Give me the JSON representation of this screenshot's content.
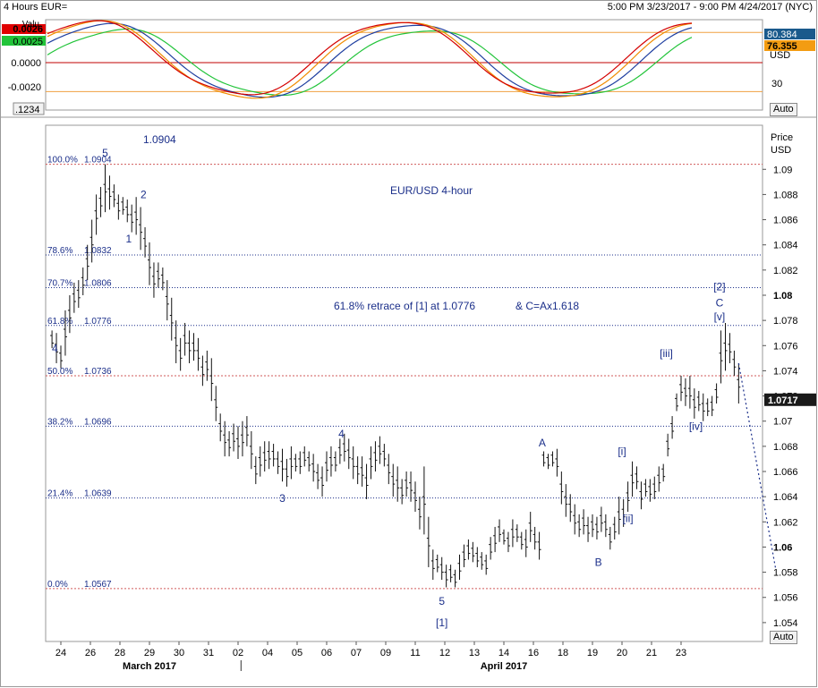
{
  "header": {
    "title": "4 Hours EUR=",
    "range": "5:00 PM 3/23/2017 - 9:00 PM 4/24/2017 (NYC)"
  },
  "indicator": {
    "left_badge_top": "0.0026",
    "left_badge_bottom": "0.0025",
    "left_ticks": [
      {
        "v": 0.0,
        "t": "0.0000"
      },
      {
        "v": -0.002,
        "t": "-0.0020"
      }
    ],
    "left_value_top_label": "Valu",
    "right_badge_top": "80.384",
    "right_badge_bottom": "76.355",
    "right_unit": "USD",
    "right_tick": "30",
    "corner_label": ".1234",
    "auto_label": "Auto",
    "colors": {
      "red": "#d40000",
      "orange": "#f08c00",
      "blue": "#1f3fa0",
      "green": "#22c43a",
      "badge_top_red": "#e00000",
      "badge_bottom_green": "#22c43a",
      "badge_right_blue": "#1a5a8c",
      "badge_right_orange": "#f39c12"
    }
  },
  "main": {
    "price_header": "Price",
    "price_unit": "USD",
    "auto_label": "Auto",
    "current_price_label": "1.0717",
    "chart_title_text": "EUR/USD 4-hour",
    "annotation_text": "61.8% retrace of [1] at 1.0776",
    "annotation_text_2": "& C=Ax1.618",
    "top_value_label": "1.0904"
  },
  "chart_data": {
    "type": "candlestick",
    "title": "EUR/USD 4-hour",
    "x_axis": {
      "ticks": [
        "24",
        "26",
        "28",
        "29",
        "30",
        "31",
        "02",
        "04",
        "05",
        "06",
        "07",
        "09",
        "11",
        "12",
        "13",
        "14",
        "16",
        "18",
        "19",
        "20",
        "21",
        "23"
      ],
      "months": [
        "March 2017",
        "April 2017"
      ]
    },
    "y_axis": {
      "unit": "USD",
      "ylim": [
        1.0525,
        1.0935
      ],
      "ticks": [
        "1.09",
        "1.088",
        "1.086",
        "1.084",
        "1.082",
        "1.08",
        "1.078",
        "1.076",
        "1.074",
        "1.072",
        "1.07",
        "1.068",
        "1.066",
        "1.064",
        "1.062",
        "1.06",
        "1.058",
        "1.056",
        "1.054"
      ]
    },
    "fib_levels": [
      {
        "pct": "100.0%",
        "value": "1.0904"
      },
      {
        "pct": "78.6%",
        "value": "1.0832"
      },
      {
        "pct": "70.7%",
        "value": "1.0806"
      },
      {
        "pct": "61.8%",
        "value": "1.0776"
      },
      {
        "pct": "50.0%",
        "value": "1.0736"
      },
      {
        "pct": "38.2%",
        "value": "1.0696"
      },
      {
        "pct": "21.4%",
        "value": "1.0639"
      },
      {
        "pct": "0.0%",
        "value": "1.0567"
      }
    ],
    "wave_labels": [
      {
        "t": "5",
        "x": 1.5,
        "y": 1.091
      },
      {
        "t": "2",
        "x": 2.8,
        "y": 1.0877
      },
      {
        "t": "1",
        "x": 2.3,
        "y": 1.0842
      },
      {
        "t": "4",
        "x": -0.2,
        "y": 1.0755
      },
      {
        "t": "3",
        "x": 7.5,
        "y": 1.0636
      },
      {
        "t": "4",
        "x": 9.5,
        "y": 1.0687
      },
      {
        "t": "5",
        "x": 12.9,
        "y": 1.0554
      },
      {
        "t": "[1]",
        "x": 12.9,
        "y": 1.0537
      },
      {
        "t": "A",
        "x": 16.3,
        "y": 1.068
      },
      {
        "t": "B",
        "x": 18.2,
        "y": 1.0585
      },
      {
        "t": "[i]",
        "x": 19.0,
        "y": 1.0673
      },
      {
        "t": "[ii]",
        "x": 19.2,
        "y": 1.062
      },
      {
        "t": "[iii]",
        "x": 20.5,
        "y": 1.0751
      },
      {
        "t": "[iv]",
        "x": 21.5,
        "y": 1.0693
      },
      {
        "t": "[v]",
        "x": 22.3,
        "y": 1.078
      },
      {
        "t": "C",
        "x": 22.3,
        "y": 1.0791
      },
      {
        "t": "[2]",
        "x": 22.3,
        "y": 1.0804
      }
    ],
    "bars": [
      [
        -0.3,
        1.0758,
        1.0772
      ],
      [
        -0.15,
        1.0746,
        1.077
      ],
      [
        0,
        1.0742,
        1.076
      ],
      [
        0.15,
        1.0752,
        1.0788
      ],
      [
        0.3,
        1.077,
        1.08
      ],
      [
        0.45,
        1.0786,
        1.081
      ],
      [
        0.6,
        1.079,
        1.0812
      ],
      [
        0.75,
        1.08,
        1.0822
      ],
      [
        0.9,
        1.0812,
        1.084
      ],
      [
        1.05,
        1.0826,
        1.086
      ],
      [
        1.2,
        1.0848,
        1.088
      ],
      [
        1.35,
        1.0862,
        1.0886
      ],
      [
        1.5,
        1.0866,
        1.0904
      ],
      [
        1.65,
        1.0868,
        1.0895
      ],
      [
        1.8,
        1.087,
        1.0888
      ],
      [
        1.95,
        1.086,
        1.088
      ],
      [
        2.1,
        1.0864,
        1.0878
      ],
      [
        2.25,
        1.0858,
        1.0876
      ],
      [
        2.4,
        1.085,
        1.0872
      ],
      [
        2.55,
        1.0848,
        1.0878
      ],
      [
        2.7,
        1.0836,
        1.087
      ],
      [
        2.85,
        1.083,
        1.0854
      ],
      [
        3.0,
        1.0808,
        1.0842
      ],
      [
        3.15,
        1.0798,
        1.0826
      ],
      [
        3.3,
        1.0806,
        1.0826
      ],
      [
        3.45,
        1.0804,
        1.0822
      ],
      [
        3.6,
        1.078,
        1.0812
      ],
      [
        3.75,
        1.0764,
        1.0798
      ],
      [
        3.9,
        1.0746,
        1.078
      ],
      [
        4.05,
        1.074,
        1.0766
      ],
      [
        4.2,
        1.0752,
        1.0778
      ],
      [
        4.35,
        1.0746,
        1.0772
      ],
      [
        4.5,
        1.0748,
        1.077
      ],
      [
        4.65,
        1.074,
        1.0766
      ],
      [
        4.8,
        1.0728,
        1.0752
      ],
      [
        4.95,
        1.0732,
        1.0756
      ],
      [
        5.1,
        1.0716,
        1.075
      ],
      [
        5.25,
        1.07,
        1.0728
      ],
      [
        5.4,
        1.0684,
        1.0706
      ],
      [
        5.55,
        1.0672,
        1.07
      ],
      [
        5.7,
        1.0672,
        1.0692
      ],
      [
        5.85,
        1.0676,
        1.0698
      ],
      [
        6.0,
        1.067,
        1.0696
      ],
      [
        6.15,
        1.0672,
        1.07
      ],
      [
        6.3,
        1.068,
        1.0704
      ],
      [
        6.45,
        1.0662,
        1.0692
      ],
      [
        6.6,
        1.065,
        1.0672
      ],
      [
        6.75,
        1.0656,
        1.068
      ],
      [
        6.9,
        1.066,
        1.0684
      ],
      [
        7.05,
        1.0662,
        1.0684
      ],
      [
        7.2,
        1.0664,
        1.0682
      ],
      [
        7.35,
        1.0658,
        1.0676
      ],
      [
        7.5,
        1.0652,
        1.0678
      ],
      [
        7.65,
        1.0648,
        1.067
      ],
      [
        7.8,
        1.0654,
        1.068
      ],
      [
        7.95,
        1.066,
        1.0674
      ],
      [
        8.1,
        1.0658,
        1.0676
      ],
      [
        8.25,
        1.0664,
        1.068
      ],
      [
        8.4,
        1.066,
        1.0676
      ],
      [
        8.55,
        1.0652,
        1.0674
      ],
      [
        8.7,
        1.0646,
        1.0666
      ],
      [
        8.85,
        1.064,
        1.0664
      ],
      [
        9.0,
        1.0652,
        1.0676
      ],
      [
        9.15,
        1.0656,
        1.068
      ],
      [
        9.3,
        1.066,
        1.0676
      ],
      [
        9.45,
        1.0666,
        1.0686
      ],
      [
        9.6,
        1.0668,
        1.069
      ],
      [
        9.75,
        1.0662,
        1.0686
      ],
      [
        9.9,
        1.0654,
        1.068
      ],
      [
        10.05,
        1.065,
        1.0672
      ],
      [
        10.2,
        1.0648,
        1.0672
      ],
      [
        10.35,
        1.0638,
        1.0666
      ],
      [
        10.5,
        1.0654,
        1.068
      ],
      [
        10.65,
        1.066,
        1.0684
      ],
      [
        10.8,
        1.0666,
        1.0688
      ],
      [
        10.95,
        1.0664,
        1.0682
      ],
      [
        11.1,
        1.065,
        1.0674
      ],
      [
        11.25,
        1.064,
        1.0666
      ],
      [
        11.4,
        1.0636,
        1.0664
      ],
      [
        11.55,
        1.0634,
        1.0654
      ],
      [
        11.7,
        1.064,
        1.066
      ],
      [
        11.85,
        1.0636,
        1.066
      ],
      [
        12.0,
        1.0628,
        1.0652
      ],
      [
        12.15,
        1.0614,
        1.064
      ],
      [
        12.3,
        1.061,
        1.0664
      ],
      [
        12.45,
        1.0584,
        1.0624
      ],
      [
        12.6,
        1.0574,
        1.0598
      ],
      [
        12.75,
        1.058,
        1.0594
      ],
      [
        12.9,
        1.0574,
        1.0592
      ],
      [
        13.05,
        1.0568,
        1.0586
      ],
      [
        13.2,
        1.0572,
        1.0586
      ],
      [
        13.35,
        1.0568,
        1.0582
      ],
      [
        13.5,
        1.0574,
        1.0594
      ],
      [
        13.65,
        1.0584,
        1.0602
      ],
      [
        13.8,
        1.059,
        1.0606
      ],
      [
        13.95,
        1.0588,
        1.0604
      ],
      [
        14.1,
        1.0584,
        1.06
      ],
      [
        14.25,
        1.0582,
        1.0596
      ],
      [
        14.4,
        1.0578,
        1.0594
      ],
      [
        14.55,
        1.059,
        1.0608
      ],
      [
        14.7,
        1.0596,
        1.0616
      ],
      [
        14.85,
        1.0604,
        1.0622
      ],
      [
        15.0,
        1.0602,
        1.0614
      ],
      [
        15.15,
        1.0596,
        1.0612
      ],
      [
        15.3,
        1.06,
        1.0622
      ],
      [
        15.45,
        1.0604,
        1.0618
      ],
      [
        15.6,
        1.0598,
        1.0612
      ],
      [
        15.75,
        1.0592,
        1.0614
      ],
      [
        15.9,
        1.0604,
        1.0628
      ],
      [
        16.05,
        1.0598,
        1.0616
      ],
      [
        16.2,
        1.059,
        1.0612
      ],
      [
        16.35,
        1.0664,
        1.0676
      ],
      [
        16.5,
        1.0662,
        1.0674
      ],
      [
        16.65,
        1.0664,
        1.0676
      ],
      [
        16.8,
        1.0656,
        1.0678
      ],
      [
        16.95,
        1.0634,
        1.066
      ],
      [
        17.1,
        1.0624,
        1.065
      ],
      [
        17.25,
        1.062,
        1.0642
      ],
      [
        17.4,
        1.061,
        1.0634
      ],
      [
        17.55,
        1.0608,
        1.0626
      ],
      [
        17.7,
        1.061,
        1.063
      ],
      [
        17.85,
        1.0604,
        1.0624
      ],
      [
        18.0,
        1.0608,
        1.0626
      ],
      [
        18.15,
        1.0606,
        1.0624
      ],
      [
        18.3,
        1.0612,
        1.0632
      ],
      [
        18.45,
        1.0608,
        1.0626
      ],
      [
        18.6,
        1.0598,
        1.0616
      ],
      [
        18.75,
        1.0606,
        1.0624
      ],
      [
        18.9,
        1.061,
        1.064
      ],
      [
        19.05,
        1.0616,
        1.0638
      ],
      [
        19.2,
        1.0628,
        1.0652
      ],
      [
        19.35,
        1.064,
        1.0668
      ],
      [
        19.5,
        1.0646,
        1.0664
      ],
      [
        19.65,
        1.063,
        1.0652
      ],
      [
        19.8,
        1.064,
        1.0654
      ],
      [
        19.95,
        1.0636,
        1.0654
      ],
      [
        20.1,
        1.0638,
        1.0656
      ],
      [
        20.25,
        1.0644,
        1.0664
      ],
      [
        20.4,
        1.0652,
        1.0666
      ],
      [
        20.55,
        1.0672,
        1.069
      ],
      [
        20.7,
        1.0686,
        1.0704
      ],
      [
        20.85,
        1.0708,
        1.0722
      ],
      [
        21.0,
        1.0716,
        1.0736
      ],
      [
        21.15,
        1.0712,
        1.0734
      ],
      [
        21.3,
        1.071,
        1.0736
      ],
      [
        21.45,
        1.0702,
        1.0726
      ],
      [
        21.6,
        1.0708,
        1.0724
      ],
      [
        21.75,
        1.07,
        1.0722
      ],
      [
        21.9,
        1.0704,
        1.0718
      ],
      [
        22.05,
        1.0704,
        1.072
      ],
      [
        22.2,
        1.0714,
        1.073
      ],
      [
        22.35,
        1.073,
        1.0772
      ],
      [
        22.5,
        1.074,
        1.0778
      ],
      [
        22.65,
        1.0746,
        1.077
      ],
      [
        22.8,
        1.0736,
        1.0756
      ],
      [
        22.95,
        1.0714,
        1.0746
      ]
    ],
    "projection": [
      [
        22.95,
        1.0746
      ],
      [
        24.2,
        1.0583
      ]
    ]
  }
}
